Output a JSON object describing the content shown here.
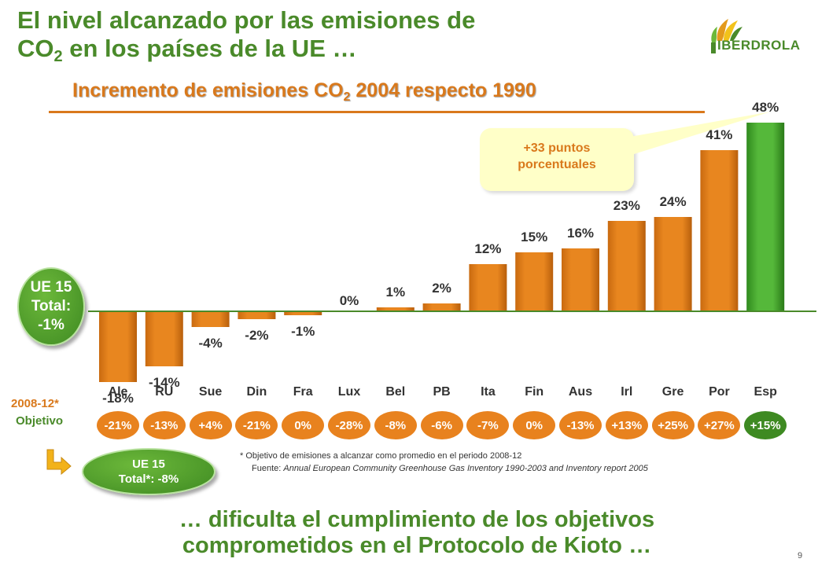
{
  "header": {
    "title_line1": "El nivel alcanzado por las emisiones de",
    "title_line2_pre": "CO",
    "title_line2_sub": "2",
    "title_line2_post": " en los países de la UE …",
    "logo_text": "IBERDROLA"
  },
  "chart_data": {
    "type": "bar",
    "title_pre": "Incremento de emisiones CO",
    "title_sub": "2",
    "title_post": " 2004 respecto 1990",
    "categories": [
      "Ale",
      "RU",
      "Sue",
      "Din",
      "Fra",
      "Lux",
      "Bel",
      "PB",
      "Ita",
      "Fin",
      "Aus",
      "Irl",
      "Gre",
      "Por",
      "Esp"
    ],
    "values": [
      -18,
      -14,
      -4,
      -2,
      -1,
      0,
      1,
      2,
      12,
      15,
      16,
      23,
      24,
      41,
      48
    ],
    "value_labels": [
      "-18%",
      "-14%",
      "-4%",
      "-2%",
      "-1%",
      "0%",
      "1%",
      "2%",
      "12%",
      "15%",
      "16%",
      "23%",
      "24%",
      "41%",
      "48%"
    ],
    "objectives": [
      "-21%",
      "-13%",
      "+4%",
      "-21%",
      "0%",
      "-28%",
      "-8%",
      "-6%",
      "-7%",
      "0%",
      "-13%",
      "+13%",
      "+25%",
      "+27%",
      "+15%"
    ],
    "highlight_category": "Esp",
    "colors": {
      "bar": "#e0821e",
      "highlight": "#3e9a2a",
      "baseline": "#4a8a2a"
    }
  },
  "callout": {
    "text": "+33 puntos\nporcentuales"
  },
  "ue_total": {
    "text": "UE 15\nTotal:\n-1%"
  },
  "objective_labels": {
    "year": "2008-12*",
    "label": "Objetivo"
  },
  "ue_objective": {
    "text": "UE 15\nTotal*: -8%"
  },
  "notes": {
    "footnote": "* Objetivo de emisiones a alcanzar como promedio en el periodo 2008-12",
    "source_prefix": "Fuente: ",
    "source_text": "Annual European Community Greenhouse Gas Inventory 1990-2003  and Inventory report 2005"
  },
  "bottom_text": "… dificulta el cumplimiento de los objetivos\ncomprometidos en el Protocolo de Kioto …",
  "page_number": "9"
}
